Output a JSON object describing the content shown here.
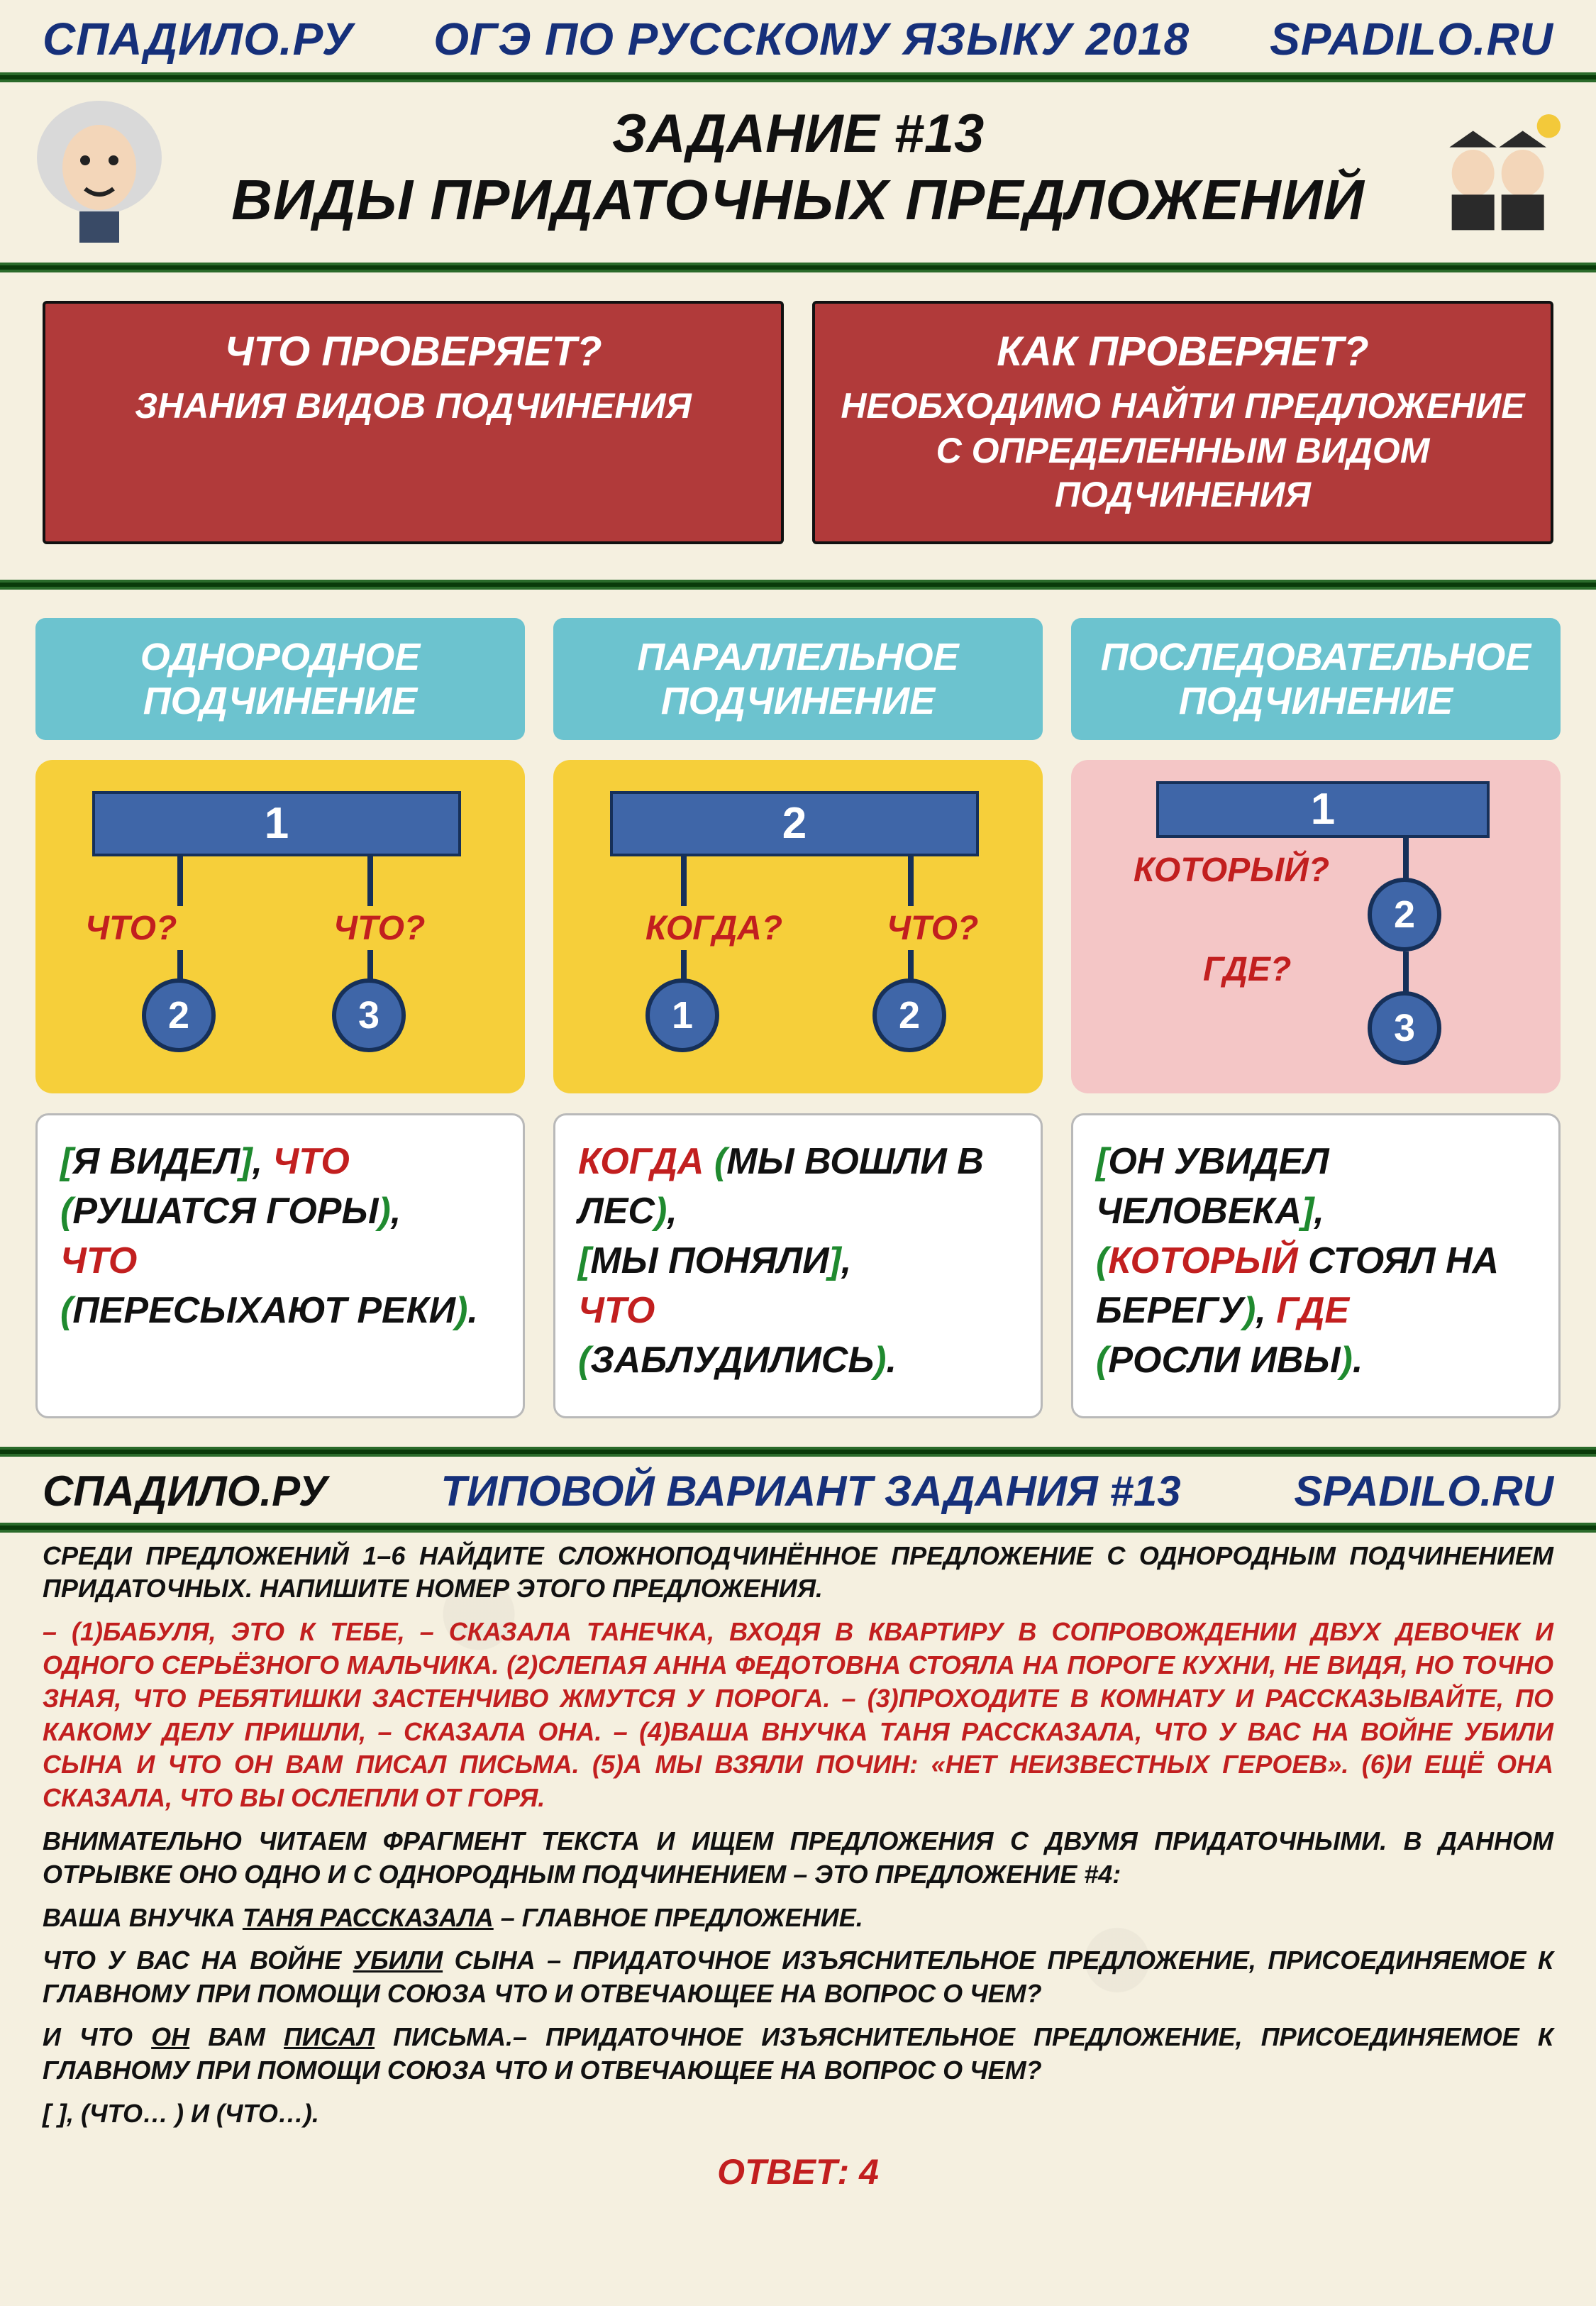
{
  "colors": {
    "navy": "#16307a",
    "red_box": "#b13a3a",
    "teal": "#6cc3cf",
    "yellow": "#f6cf3a",
    "pink": "#f4c6c6",
    "node_fill": "#3f66a8",
    "node_border": "#163059",
    "text_red": "#c21f1f",
    "text_green": "#1f8a2f",
    "bg": "#f5f0e0"
  },
  "topbar": {
    "left": "СПАДИЛО.РУ",
    "mid": "ОГЭ ПО РУССКОМУ ЯЗЫКУ 2018",
    "right": "SPADILO.RU"
  },
  "title": {
    "line1": "ЗАДАНИЕ #13",
    "line2": "ВИДЫ ПРИДАТОЧНЫХ ПРЕДЛОЖЕНИЙ"
  },
  "redbox1": {
    "q": "ЧТО ПРОВЕРЯЕТ?",
    "a": "ЗНАНИЯ ВИДОВ ПОДЧИНЕНИЯ"
  },
  "redbox2": {
    "q": "КАК ПРОВЕРЯЕТ?",
    "a": "НЕОБХОДИМО НАЙТИ ПРЕДЛОЖЕНИЕ С ОПРЕДЕЛЕННЫМ ВИДОМ ПОДЧИНЕНИЯ"
  },
  "columns": [
    {
      "head": "ОДНОРОДНОЕ ПОДЧИНЕНИЕ",
      "diagram_bg": "yellow",
      "layout": "fork",
      "root_label": "1",
      "children": [
        {
          "q": "ЧТО?",
          "n": "2"
        },
        {
          "q": "ЧТО?",
          "n": "3"
        }
      ]
    },
    {
      "head": "ПАРАЛЛЕЛЬНОЕ ПОДЧИНЕНИЕ",
      "diagram_bg": "yellow",
      "layout": "fork",
      "root_label": "2",
      "children": [
        {
          "q": "КОГДА?",
          "n": "1"
        },
        {
          "q": "ЧТО?",
          "n": "2"
        }
      ]
    },
    {
      "head": "ПОСЛЕДОВАТЕЛЬНОЕ ПОДЧИНЕНИЕ",
      "diagram_bg": "pink",
      "layout": "chain",
      "root_label": "1",
      "chain": [
        {
          "q": "КОТОРЫЙ?",
          "n": "2"
        },
        {
          "q": "ГДЕ?",
          "n": "3"
        }
      ]
    }
  ],
  "example1": {
    "parts": [
      {
        "c": "green",
        "t": "["
      },
      {
        "c": "black",
        "t": "Я ВИДЕЛ"
      },
      {
        "c": "green",
        "t": "]"
      },
      {
        "c": "black",
        "t": ", "
      },
      {
        "c": "red",
        "t": "ЧТО"
      },
      {
        "c": "black",
        "t": " "
      },
      {
        "c": "green",
        "t": "("
      },
      {
        "c": "black",
        "t": "РУШАТСЯ ГОРЫ"
      },
      {
        "c": "green",
        "t": ")"
      },
      {
        "c": "black",
        "t": ", "
      },
      {
        "c": "br"
      },
      {
        "c": "red",
        "t": "ЧТО"
      },
      {
        "c": "black",
        "t": " "
      },
      {
        "c": "br"
      },
      {
        "c": "green",
        "t": "("
      },
      {
        "c": "black",
        "t": "ПЕРЕСЫХАЮТ РЕКИ"
      },
      {
        "c": "green",
        "t": ")"
      },
      {
        "c": "black",
        "t": "."
      }
    ]
  },
  "example2": {
    "parts": [
      {
        "c": "red",
        "t": "КОГДА"
      },
      {
        "c": "black",
        "t": " "
      },
      {
        "c": "green",
        "t": "("
      },
      {
        "c": "black",
        "t": "МЫ ВОШЛИ В ЛЕС"
      },
      {
        "c": "green",
        "t": ")"
      },
      {
        "c": "black",
        "t": ", "
      },
      {
        "c": "br"
      },
      {
        "c": "green",
        "t": "["
      },
      {
        "c": "black",
        "t": "МЫ ПОНЯЛИ"
      },
      {
        "c": "green",
        "t": "]"
      },
      {
        "c": "black",
        "t": ", "
      },
      {
        "c": "br"
      },
      {
        "c": "red",
        "t": "ЧТО"
      },
      {
        "c": "black",
        "t": " "
      },
      {
        "c": "br"
      },
      {
        "c": "green",
        "t": "("
      },
      {
        "c": "black",
        "t": "ЗАБЛУДИЛИСЬ"
      },
      {
        "c": "green",
        "t": ")"
      },
      {
        "c": "black",
        "t": "."
      }
    ]
  },
  "example3": {
    "parts": [
      {
        "c": "green",
        "t": "["
      },
      {
        "c": "black",
        "t": "ОН УВИДЕЛ ЧЕЛОВЕКА"
      },
      {
        "c": "green",
        "t": "]"
      },
      {
        "c": "black",
        "t": ", "
      },
      {
        "c": "br"
      },
      {
        "c": "green",
        "t": "("
      },
      {
        "c": "red",
        "t": "КОТОРЫЙ"
      },
      {
        "c": "black",
        "t": " СТОЯЛ НА БЕРЕГУ"
      },
      {
        "c": "green",
        "t": ")"
      },
      {
        "c": "black",
        "t": ", "
      },
      {
        "c": "red",
        "t": "ГДЕ"
      },
      {
        "c": "black",
        "t": " "
      },
      {
        "c": "br"
      },
      {
        "c": "green",
        "t": "("
      },
      {
        "c": "black",
        "t": "РОСЛИ ИВЫ"
      },
      {
        "c": "green",
        "t": ")"
      },
      {
        "c": "black",
        "t": "."
      }
    ]
  },
  "section2": {
    "left": "СПАДИЛО.РУ",
    "mid": "ТИПОВОЙ ВАРИАНТ ЗАДАНИЯ #13",
    "right": "SPADILO.RU"
  },
  "task": {
    "instr": "СРЕДИ ПРЕДЛОЖЕНИЙ 1–6 НАЙДИТЕ СЛОЖНОПОДЧИНЁННОЕ ПРЕДЛОЖЕНИЕ С ОДНОРОДНЫМ ПОДЧИНЕНИЕМ ПРИДАТОЧНЫХ. НАПИШИТЕ НОМЕР ЭТОГО ПРЕДЛОЖЕНИЯ.",
    "passage": "– (1)БАБУЛЯ, ЭТО К ТЕБЕ, – СКАЗАЛА ТАНЕЧКА, ВХОДЯ В КВАРТИРУ В СОПРОВОЖДЕНИИ ДВУХ ДЕВОЧЕК И ОДНОГО СЕРЬЁЗНОГО МАЛЬЧИКА. (2)СЛЕПАЯ АННА ФЕДОТОВНА СТОЯЛА НА ПОРОГЕ КУХНИ, НЕ ВИДЯ, НО ТОЧНО ЗНАЯ, ЧТО РЕБЯТИШКИ ЗАСТЕНЧИВО ЖМУТСЯ У ПОРОГА. – (3)ПРОХОДИТЕ В КОМНАТУ И РАССКАЗЫВАЙТЕ, ПО КАКОМУ ДЕЛУ ПРИШЛИ, – СКАЗАЛА ОНА. – (4)ВАША ВНУЧКА ТАНЯ РАССКАЗАЛА, ЧТО У ВАС НА ВОЙНЕ УБИЛИ СЫНА И ЧТО ОН ВАМ ПИСАЛ ПИСЬМА. (5)А МЫ ВЗЯЛИ ПОЧИН: «НЕТ НЕИЗВЕСТНЫХ ГЕРОЕВ». (6)И ЕЩЁ ОНА СКАЗАЛА, ЧТО ВЫ ОСЛЕПЛИ ОТ ГОРЯ.",
    "expl1": "ВНИМАТЕЛЬНО ЧИТАЕМ ФРАГМЕНТ ТЕКСТА И ИЩЕМ ПРЕДЛОЖЕНИЯ С ДВУМЯ ПРИДАТОЧНЫМИ. В ДАННОМ ОТРЫВКЕ ОНО ОДНО И С ОДНОРОДНЫМ ПОДЧИНЕНИЕМ – ЭТО ПРЕДЛОЖЕНИЕ #4:",
    "expl2_pre": "ВАША ВНУЧКА ",
    "expl2_u": "ТАНЯ РАССКАЗАЛА",
    "expl2_post": " – ГЛАВНОЕ ПРЕДЛОЖЕНИЕ.",
    "expl3_pre": "ЧТО У ВАС НА ВОЙНЕ ",
    "expl3_u": "УБИЛИ",
    "expl3_post": " СЫНА – ПРИДАТОЧНОЕ ИЗЪЯСНИТЕЛЬНОЕ ПРЕДЛОЖЕНИЕ, ПРИСОЕДИНЯЕМОЕ К ГЛАВНОМУ ПРИ ПОМОЩИ СОЮЗА ЧТО И ОТВЕЧАЮЩЕЕ НА ВОПРОС О ЧЕМ?",
    "expl4_pre": "И ЧТО ",
    "expl4_u1": "ОН",
    "expl4_mid": " ВАМ ",
    "expl4_u2": "ПИСАЛ",
    "expl4_post": " ПИСЬМА.– ПРИДАТОЧНОЕ ИЗЪЯСНИТЕЛЬНОЕ ПРЕДЛОЖЕНИЕ, ПРИСОЕДИНЯЕМОЕ К ГЛАВНОМУ ПРИ ПОМОЩИ СОЮЗА ЧТО И ОТВЕЧАЮЩЕЕ НА ВОПРОС О ЧЕМ?",
    "expl5": "[   ], (ЧТО… ) И (ЧТО…).",
    "answer": "ОТВЕТ: 4"
  }
}
